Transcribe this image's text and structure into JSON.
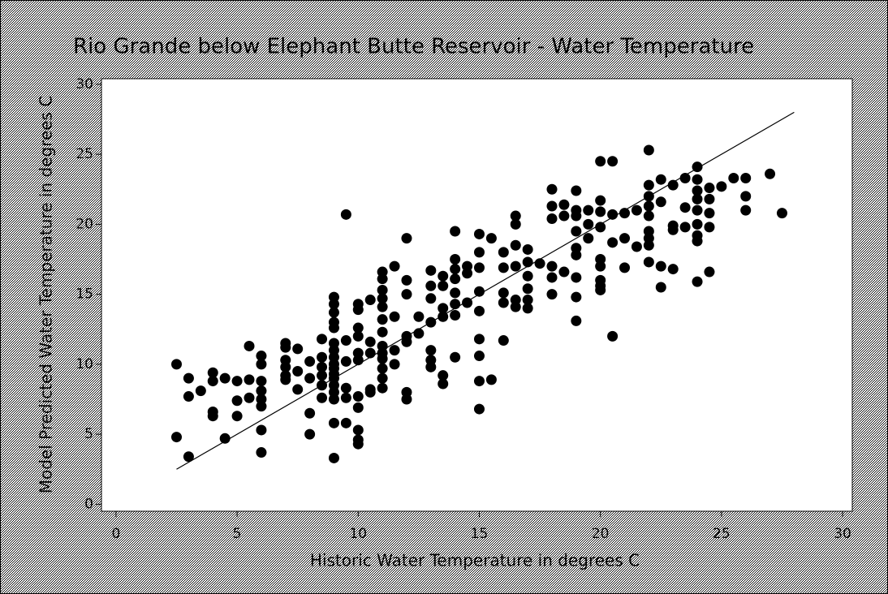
{
  "chart_data": {
    "type": "scatter",
    "title": "Rio Grande below Elephant Butte Reservoir - Water Temperature",
    "x_label": "Historic Water Temperature in degrees C",
    "y_label": "Model Predicted Water Temperature in degrees C",
    "xlim": [
      -0.6,
      30.4
    ],
    "ylim": [
      -0.5,
      30.4
    ],
    "xticks": [
      0,
      5,
      10,
      15,
      20,
      25,
      30
    ],
    "yticks": [
      0,
      5,
      10,
      15,
      20,
      25,
      30
    ],
    "color": "#000000",
    "x": [
      2.5,
      2.5,
      3,
      3,
      3,
      3.5,
      4,
      4,
      4,
      4,
      4.5,
      4.5,
      5,
      5,
      5,
      5.5,
      5.5,
      5.5,
      6,
      6,
      6,
      6,
      6,
      6,
      6,
      6,
      7,
      7,
      7,
      7,
      7,
      7,
      7.5,
      7.5,
      7.5,
      8,
      8,
      8,
      8,
      8.5,
      8.5,
      8.5,
      8.5,
      8.5,
      8.5,
      9,
      9,
      9,
      9,
      9,
      9,
      9,
      9,
      9,
      9,
      9,
      9,
      9,
      9,
      9,
      9,
      9,
      9.5,
      9.5,
      9.5,
      9.5,
      9.5,
      9.5,
      10,
      10,
      10,
      10,
      10,
      10,
      10,
      10,
      10,
      10,
      10,
      10.5,
      10.5,
      10.5,
      10.5,
      10.5,
      11,
      11,
      11,
      11,
      11,
      11,
      11,
      11,
      11,
      11,
      11,
      11,
      11,
      11.5,
      11.5,
      11.5,
      11.5,
      12,
      12,
      12,
      12,
      12,
      12,
      12,
      12.5,
      12.5,
      13,
      13,
      13,
      13,
      13,
      13,
      13,
      13.5,
      13.5,
      13.5,
      13.5,
      13.5,
      13.5,
      14,
      14,
      14,
      14,
      14,
      14,
      14,
      14,
      14.5,
      14.5,
      14.5,
      15,
      15,
      15,
      15,
      15,
      15,
      15,
      15,
      15,
      15.5,
      15.5,
      16,
      16,
      16,
      16,
      16,
      16.5,
      16.5,
      16.5,
      16.5,
      16.5,
      16.5,
      17,
      17,
      17,
      17,
      17,
      17,
      17.5,
      18,
      18,
      18,
      18,
      18,
      18,
      18.5,
      18.5,
      18.5,
      19,
      19,
      19,
      19,
      19,
      19,
      19,
      19,
      19,
      19.5,
      19.5,
      19.5,
      20,
      20,
      20,
      20,
      20,
      20,
      20,
      20,
      20,
      20.5,
      20.5,
      20.5,
      20.5,
      21,
      21,
      21,
      21.5,
      21.5,
      22,
      22,
      22,
      22,
      22,
      22,
      22,
      22,
      22,
      22.5,
      22.5,
      22.5,
      22.5,
      23,
      23,
      23,
      23,
      23.5,
      23.5,
      23.5,
      24,
      24,
      24,
      24,
      24,
      24,
      24,
      24,
      24,
      24.5,
      24.5,
      24.5,
      24.5,
      24.5,
      25,
      25.5,
      26,
      26,
      26,
      27,
      27.5
    ],
    "values": [
      10.0,
      4.8,
      9.0,
      7.7,
      3.4,
      8.1,
      9.4,
      8.8,
      6.6,
      6.3,
      9.0,
      4.7,
      8.8,
      7.4,
      6.3,
      11.3,
      8.9,
      7.6,
      10.6,
      10.0,
      8.8,
      8.1,
      7.5,
      7.0,
      5.3,
      3.7,
      11.5,
      11.2,
      10.3,
      9.8,
      9.2,
      8.9,
      11.1,
      9.5,
      8.2,
      10.2,
      9.0,
      6.5,
      5.0,
      11.8,
      10.5,
      9.8,
      9.2,
      8.5,
      7.6,
      14.8,
      14.3,
      13.7,
      13.0,
      12.6,
      11.5,
      11.0,
      10.5,
      10.0,
      9.7,
      9.3,
      9.0,
      8.5,
      8.0,
      7.5,
      5.8,
      3.3,
      20.7,
      11.7,
      10.2,
      8.3,
      7.6,
      5.8,
      14.3,
      13.9,
      12.6,
      12.0,
      10.8,
      10.3,
      7.7,
      6.9,
      5.3,
      4.6,
      4.3,
      14.6,
      11.6,
      10.8,
      8.2,
      8.0,
      16.6,
      16.1,
      15.3,
      14.7,
      14.1,
      13.2,
      12.3,
      11.3,
      10.8,
      10.4,
      9.7,
      9.0,
      8.3,
      17.0,
      13.4,
      11.0,
      10.0,
      19.0,
      16.0,
      15.0,
      12.0,
      11.6,
      8.0,
      7.5,
      13.4,
      12.2,
      16.7,
      15.6,
      14.7,
      13.0,
      11.0,
      10.3,
      9.8,
      16.3,
      15.6,
      14.0,
      13.4,
      9.2,
      8.6,
      19.5,
      17.5,
      16.8,
      16.1,
      15.1,
      14.3,
      13.5,
      10.5,
      17.0,
      16.5,
      14.4,
      19.3,
      18.0,
      16.9,
      15.2,
      13.8,
      11.8,
      10.6,
      8.8,
      6.8,
      19.0,
      8.9,
      18.0,
      16.9,
      15.1,
      14.4,
      11.7,
      20.6,
      20.0,
      18.5,
      17.0,
      14.6,
      14.1,
      18.2,
      17.3,
      16.3,
      15.4,
      14.6,
      14.0,
      17.2,
      22.5,
      21.3,
      20.4,
      17.0,
      16.2,
      15.0,
      21.4,
      20.6,
      16.6,
      22.4,
      21.0,
      20.6,
      19.5,
      18.3,
      17.8,
      16.2,
      14.8,
      13.1,
      21.0,
      20.0,
      19.0,
      24.5,
      21.7,
      20.9,
      19.8,
      17.5,
      17.0,
      16.0,
      15.6,
      15.3,
      24.5,
      20.7,
      18.7,
      12.0,
      20.8,
      19.0,
      16.9,
      21.0,
      18.4,
      25.3,
      22.8,
      22.0,
      21.3,
      20.6,
      19.5,
      19.0,
      18.5,
      17.3,
      23.2,
      21.6,
      17.0,
      15.5,
      22.8,
      19.9,
      19.6,
      16.8,
      23.3,
      21.2,
      19.8,
      24.1,
      23.2,
      22.4,
      21.8,
      21.0,
      20.0,
      19.2,
      18.8,
      15.9,
      22.6,
      21.8,
      20.8,
      19.8,
      16.6,
      22.7,
      23.3,
      23.3,
      22.0,
      21.0,
      23.6,
      20.8
    ],
    "fit_line": {
      "type": "line",
      "color": "#000000",
      "x": [
        2.5,
        28
      ],
      "values": [
        2.5,
        28
      ]
    }
  }
}
